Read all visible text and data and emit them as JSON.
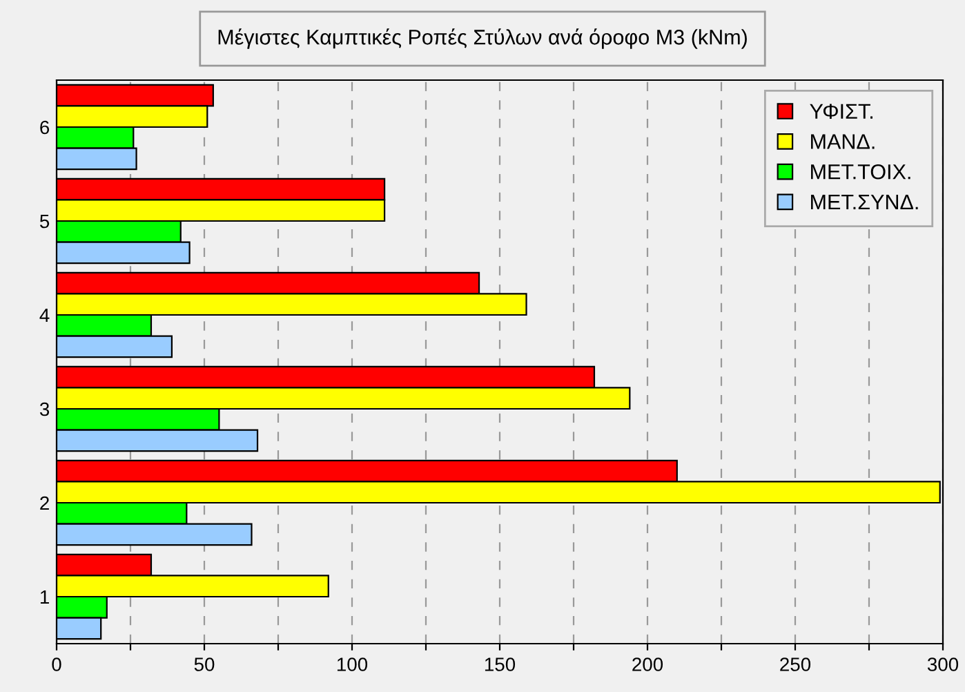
{
  "chart_data": {
    "type": "bar",
    "orientation": "horizontal",
    "title": "Μέγιστες Καμπτικές Ροπές Στύλων ανά όροφο M3 (kNm)",
    "categories": [
      "6",
      "5",
      "4",
      "3",
      "2",
      "1"
    ],
    "series": [
      {
        "name": "ΥΦΙΣΤ.",
        "color": "#ff0000",
        "values": [
          53,
          111,
          143,
          182,
          210,
          32
        ]
      },
      {
        "name": "ΜΑΝΔ.",
        "color": "#ffff00",
        "values": [
          51,
          111,
          159,
          194,
          299,
          92
        ]
      },
      {
        "name": "ΜΕΤ.ΤΟΙΧ.",
        "color": "#00ff00",
        "values": [
          26,
          42,
          32,
          55,
          44,
          17
        ]
      },
      {
        "name": "ΜΕΤ.ΣΥΝΔ.",
        "color": "#99ccff",
        "values": [
          27,
          45,
          39,
          68,
          66,
          15
        ]
      }
    ],
    "xlim": [
      0,
      300
    ],
    "xticks": [
      0,
      {
        "value": 25,
        "label": null
      },
      50,
      {
        "value": 75,
        "label": null
      },
      100,
      {
        "value": 125,
        "label": null
      },
      150,
      {
        "value": 175,
        "label": null
      },
      200,
      {
        "value": 225,
        "label": null
      },
      250,
      {
        "value": 275,
        "label": null
      },
      300
    ],
    "grid": "x",
    "legend": "top right"
  }
}
